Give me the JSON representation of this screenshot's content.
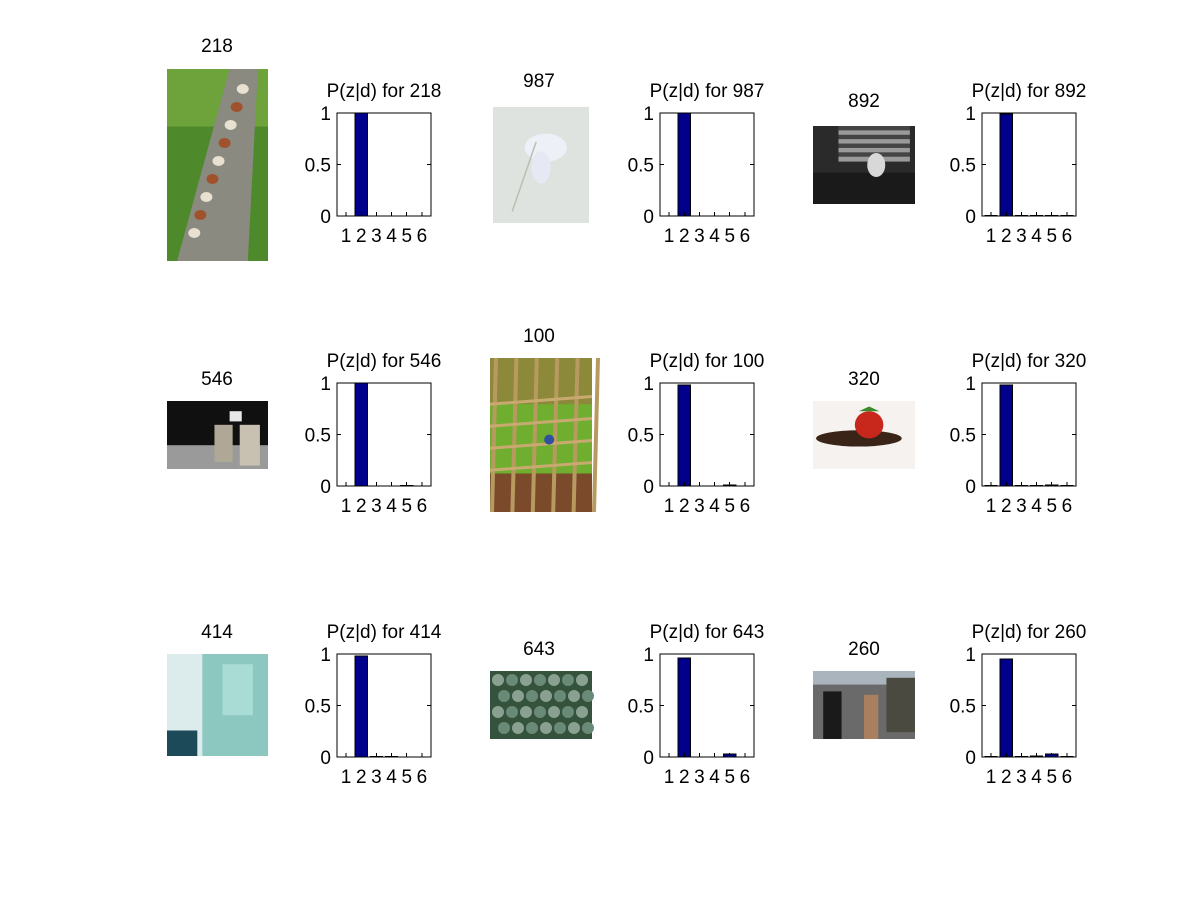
{
  "chart_data": [
    {
      "type": "bar",
      "image_label": "218",
      "title": "P(z|d) for 218",
      "categories": [
        "1",
        "2",
        "3",
        "4",
        "5",
        "6"
      ],
      "values": [
        0.0,
        1.0,
        0.0,
        0.0,
        0.0,
        0.0
      ],
      "ylim": [
        0,
        1
      ],
      "yticks": [
        "0",
        "0.5",
        "1"
      ],
      "image": {
        "kind": "dogs-bridge",
        "orientation": "portrait"
      }
    },
    {
      "type": "bar",
      "image_label": "987",
      "title": "P(z|d) for 987",
      "categories": [
        "1",
        "2",
        "3",
        "4",
        "5",
        "6"
      ],
      "values": [
        0.0,
        1.0,
        0.0,
        0.0,
        0.0,
        0.0
      ],
      "ylim": [
        0,
        1
      ],
      "yticks": [
        "0",
        "0.5",
        "1"
      ],
      "image": {
        "kind": "white-flower",
        "orientation": "portrait"
      }
    },
    {
      "type": "bar",
      "image_label": "892",
      "title": "P(z|d) for 892",
      "categories": [
        "1",
        "2",
        "3",
        "4",
        "5",
        "6"
      ],
      "values": [
        0.005,
        0.99,
        0.005,
        0.005,
        0.005,
        0.005
      ],
      "ylim": [
        0,
        1
      ],
      "yticks": [
        "0",
        "0.5",
        "1"
      ],
      "image": {
        "kind": "cat-window",
        "orientation": "landscape"
      }
    },
    {
      "type": "bar",
      "image_label": "546",
      "title": "P(z|d) for 546",
      "categories": [
        "1",
        "2",
        "3",
        "4",
        "5",
        "6"
      ],
      "values": [
        0.0,
        1.0,
        0.0,
        0.0,
        0.005,
        0.0
      ],
      "ylim": [
        0,
        1
      ],
      "yticks": [
        "0",
        "0.5",
        "1"
      ],
      "image": {
        "kind": "rings",
        "orientation": "landscape"
      }
    },
    {
      "type": "bar",
      "image_label": "100",
      "title": "P(z|d) for 100",
      "categories": [
        "1",
        "2",
        "3",
        "4",
        "5",
        "6"
      ],
      "values": [
        0.0,
        0.98,
        0.0,
        0.0,
        0.01,
        0.0
      ],
      "ylim": [
        0,
        1
      ],
      "yticks": [
        "0",
        "0.5",
        "1"
      ],
      "image": {
        "kind": "garden-fence",
        "orientation": "portrait"
      }
    },
    {
      "type": "bar",
      "image_label": "320",
      "title": "P(z|d) for 320",
      "categories": [
        "1",
        "2",
        "3",
        "4",
        "5",
        "6"
      ],
      "values": [
        0.005,
        0.98,
        0.005,
        0.005,
        0.01,
        0.005
      ],
      "ylim": [
        0,
        1
      ],
      "yticks": [
        "0",
        "0.5",
        "1"
      ],
      "image": {
        "kind": "strawberry-spoon",
        "orientation": "landscape"
      }
    },
    {
      "type": "bar",
      "image_label": "414",
      "title": "P(z|d) for 414",
      "categories": [
        "1",
        "2",
        "3",
        "4",
        "5",
        "6"
      ],
      "values": [
        0.0,
        0.98,
        0.005,
        0.005,
        0.0,
        0.0
      ],
      "ylim": [
        0,
        1
      ],
      "yticks": [
        "0",
        "0.5",
        "1"
      ],
      "image": {
        "kind": "frost-teal",
        "orientation": "square"
      }
    },
    {
      "type": "bar",
      "image_label": "643",
      "title": "P(z|d) for 643",
      "categories": [
        "1",
        "2",
        "3",
        "4",
        "5",
        "6"
      ],
      "values": [
        0.0,
        0.96,
        0.0,
        0.0,
        0.03,
        0.0
      ],
      "ylim": [
        0,
        1
      ],
      "yticks": [
        "0",
        "0.5",
        "1"
      ],
      "image": {
        "kind": "succulents",
        "orientation": "landscape"
      }
    },
    {
      "type": "bar",
      "image_label": "260",
      "title": "P(z|d) for 260",
      "categories": [
        "1",
        "2",
        "3",
        "4",
        "5",
        "6"
      ],
      "values": [
        0.005,
        0.95,
        0.005,
        0.01,
        0.03,
        0.005
      ],
      "ylim": [
        0,
        1
      ],
      "yticks": [
        "0",
        "0.5",
        "1"
      ],
      "image": {
        "kind": "rainy-street",
        "orientation": "landscape"
      }
    }
  ],
  "colors": {
    "bar": "#00008b",
    "axis": "#000000",
    "background": "#ffffff"
  }
}
